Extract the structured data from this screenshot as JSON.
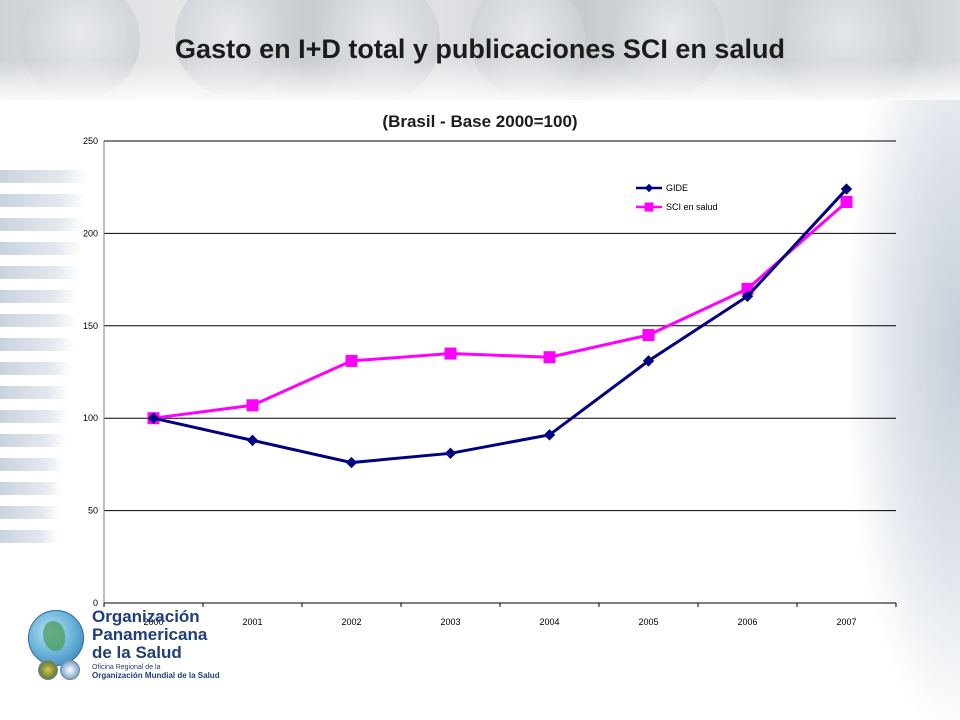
{
  "slide": {
    "title": "Gasto en I+D total y publicaciones SCI en salud"
  },
  "chart_data": {
    "type": "line",
    "title": "(Brasil - Base 2000=100)",
    "xlabel": "",
    "ylabel": "",
    "categories": [
      "2000",
      "2001",
      "2002",
      "2003",
      "2004",
      "2005",
      "2006",
      "2007"
    ],
    "ylim": [
      0,
      250
    ],
    "yticks": [
      0,
      50,
      100,
      150,
      200,
      250
    ],
    "grid": true,
    "legend": "top-right",
    "series": [
      {
        "name": "GIDE",
        "values": [
          100,
          88,
          76,
          81,
          91,
          131,
          166,
          224
        ],
        "color": "#000080",
        "marker": "diamond"
      },
      {
        "name": "SCI en salud",
        "values": [
          100,
          107,
          131,
          135,
          133,
          145,
          170,
          217
        ],
        "color": "#ff00ff",
        "marker": "square"
      }
    ]
  },
  "logo": {
    "line1": "Organización",
    "line2": "Panamericana",
    "line3": "de la Salud",
    "line4": "Oficina Regional de la",
    "line5": "Organización Mundial de la Salud"
  }
}
